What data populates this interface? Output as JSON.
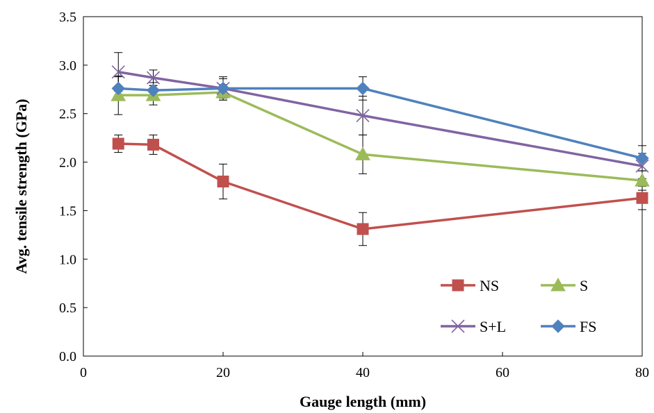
{
  "chart_data": {
    "type": "line",
    "xlabel": "Gauge length (mm)",
    "ylabel": "Avg. tensile strength (GPa)",
    "xlim": [
      0,
      80
    ],
    "ylim": [
      0,
      3.5
    ],
    "xticks": [
      0,
      20,
      40,
      60,
      80
    ],
    "yticks": [
      0.0,
      0.5,
      1.0,
      1.5,
      2.0,
      2.5,
      3.0,
      3.5
    ],
    "xtick_labels": [
      "0",
      "20",
      "40",
      "60",
      "80"
    ],
    "ytick_labels": [
      "0.0",
      "0.5",
      "1.0",
      "1.5",
      "2.0",
      "2.5",
      "3.0",
      "3.5"
    ],
    "grid": false,
    "legend_position": "bottom-right",
    "x": [
      5,
      10,
      20,
      40,
      80
    ],
    "series": [
      {
        "name": "NS",
        "color": "#C0504D",
        "marker": "square",
        "values": [
          2.19,
          2.18,
          1.8,
          1.31,
          1.63
        ],
        "errors": [
          0.09,
          0.1,
          0.18,
          0.17,
          0.12
        ]
      },
      {
        "name": "S",
        "color": "#9BBB59",
        "marker": "triangle",
        "values": [
          2.69,
          2.69,
          2.72,
          2.08,
          1.81
        ],
        "errors": [
          0.2,
          0.1,
          0.08,
          0.2,
          0.1
        ]
      },
      {
        "name": "S+L",
        "color": "#8064A2",
        "marker": "x",
        "values": [
          2.93,
          2.87,
          2.76,
          2.48,
          1.96
        ],
        "errors": [
          0.2,
          0.08,
          0.1,
          0.2,
          0.13
        ]
      },
      {
        "name": "FS",
        "color": "#4F81BD",
        "marker": "diamond",
        "values": [
          2.76,
          2.74,
          2.76,
          2.76,
          2.04
        ],
        "errors": [
          0.12,
          0.08,
          0.12,
          0.12,
          0.13
        ]
      }
    ]
  }
}
